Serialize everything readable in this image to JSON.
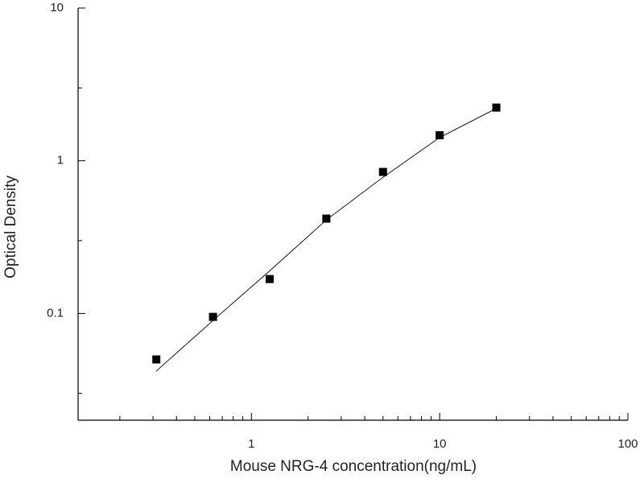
{
  "chart_data": {
    "type": "scatter",
    "x_label": "Mouse NRG-4 concentration(ng/mL)",
    "y_label": "Optical Density",
    "xscale": "log",
    "yscale": "log",
    "xlim": [
      0.12,
      100
    ],
    "ylim": [
      0.02,
      10
    ],
    "xticks": [
      1,
      10,
      100
    ],
    "yticks": [
      0.1,
      1,
      10
    ],
    "xminorticks": [
      0.2,
      0.3,
      0.4,
      0.5,
      0.6,
      0.7,
      0.8,
      0.9,
      2,
      3,
      4,
      5,
      6,
      7,
      8,
      9,
      20,
      30,
      40,
      50,
      60,
      70,
      80,
      90
    ],
    "yminorticks": [
      0.03,
      0.3,
      3
    ],
    "series": [
      {
        "kind": "points",
        "color": "#000000",
        "x": [
          0.3125,
          0.625,
          1.25,
          2.5,
          5,
          10,
          20
        ],
        "values": [
          0.05,
          0.095,
          0.168,
          0.418,
          0.845,
          1.47,
          2.23
        ]
      },
      {
        "kind": "line",
        "color": "#000000",
        "x": [
          0.3125,
          0.625,
          1.25,
          2.5,
          5,
          10,
          20
        ],
        "values": [
          0.042,
          0.09,
          0.19,
          0.41,
          0.78,
          1.42,
          2.2
        ]
      }
    ]
  }
}
